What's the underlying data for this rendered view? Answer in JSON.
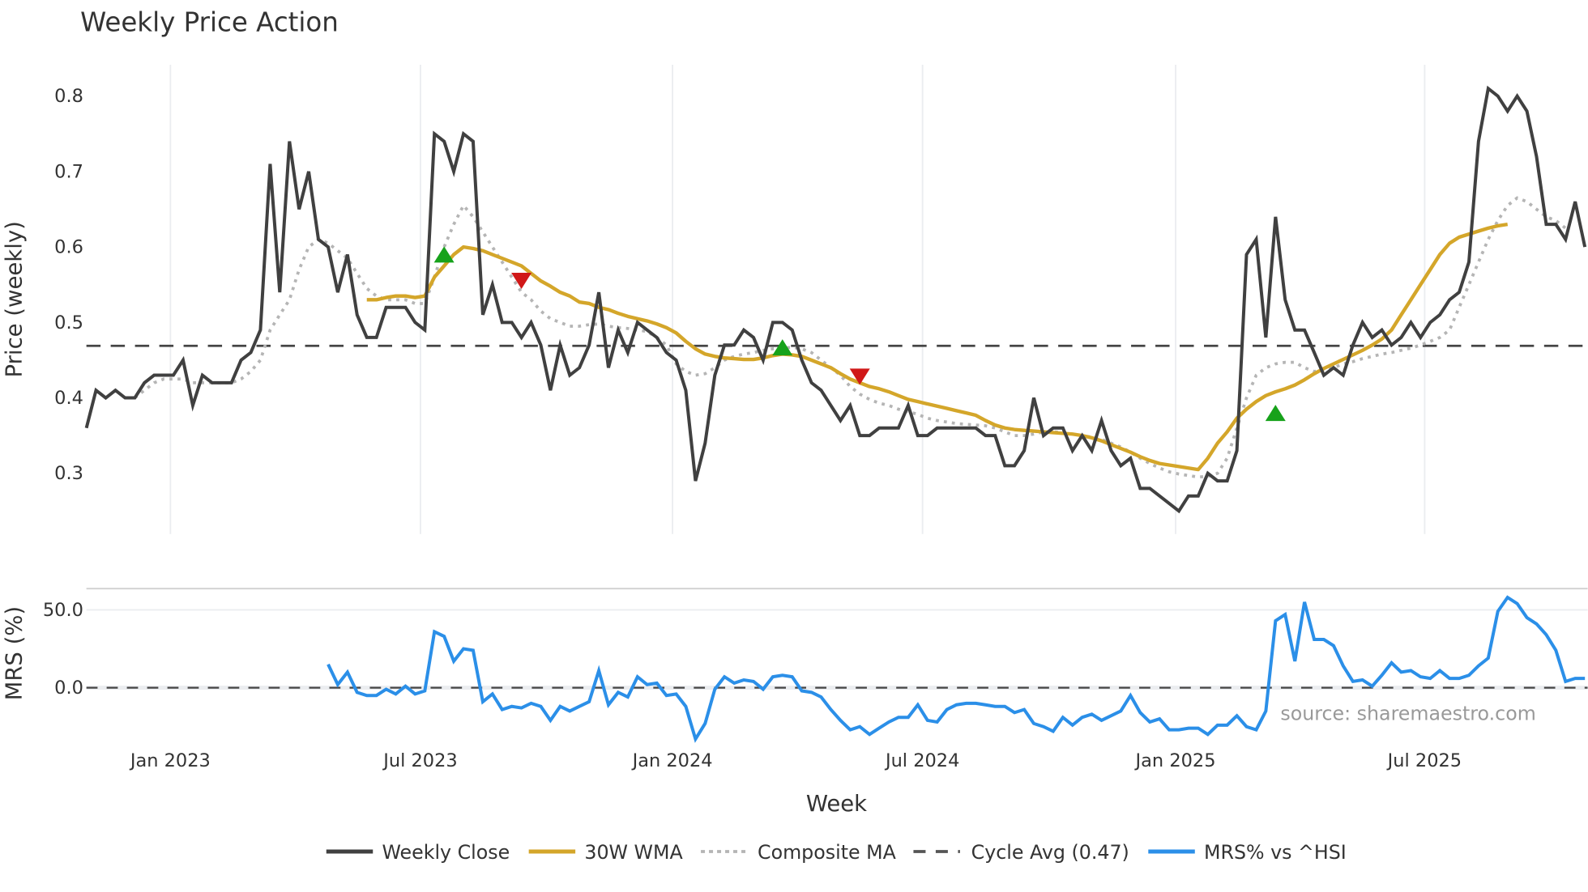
{
  "chart_data": {
    "type": "line",
    "title": "Weekly Price Action",
    "xlabel": "Week",
    "panels": [
      {
        "name": "price",
        "ylabel": "Price (weekly)",
        "ylim": [
          0.22,
          0.84
        ],
        "yticks": [
          "0.3",
          "0.4",
          "0.5",
          "0.6",
          "0.7",
          "0.8"
        ],
        "grid": true
      },
      {
        "name": "mrs",
        "ylabel": "MRS (%)",
        "ylim": [
          -35,
          62
        ],
        "yticks": [
          "0.0",
          "50.0"
        ],
        "grid": true
      }
    ],
    "x_ticks": [
      "Jan 2023",
      "Jul 2023",
      "Jan 2024",
      "Jul 2024",
      "Jan 2025",
      "Jul 2025"
    ],
    "x_range": [
      "2022-10",
      "2025-10"
    ],
    "cycle_avg": 0.47,
    "series": [
      {
        "name": "Weekly Close",
        "color": "#404040",
        "values": [
          0.36,
          0.41,
          0.4,
          0.41,
          0.4,
          0.4,
          0.42,
          0.43,
          0.43,
          0.43,
          0.45,
          0.39,
          0.43,
          0.42,
          0.42,
          0.42,
          0.45,
          0.46,
          0.49,
          0.71,
          0.54,
          0.74,
          0.65,
          0.7,
          0.61,
          0.6,
          0.54,
          0.59,
          0.51,
          0.48,
          0.48,
          0.52,
          0.52,
          0.52,
          0.5,
          0.49,
          0.75,
          0.74,
          0.7,
          0.75,
          0.74,
          0.51,
          0.55,
          0.5,
          0.5,
          0.48,
          0.5,
          0.47,
          0.41,
          0.47,
          0.43,
          0.44,
          0.47,
          0.54,
          0.44,
          0.49,
          0.46,
          0.5,
          0.49,
          0.48,
          0.46,
          0.45,
          0.41,
          0.29,
          0.34,
          0.43,
          0.47,
          0.47,
          0.49,
          0.48,
          0.45,
          0.5,
          0.5,
          0.49,
          0.45,
          0.42,
          0.41,
          0.39,
          0.37,
          0.39,
          0.35,
          0.35,
          0.36,
          0.36,
          0.36,
          0.39,
          0.35,
          0.35,
          0.36,
          0.36,
          0.36,
          0.36,
          0.36,
          0.35,
          0.35,
          0.31,
          0.31,
          0.33,
          0.4,
          0.35,
          0.36,
          0.36,
          0.33,
          0.35,
          0.33,
          0.37,
          0.33,
          0.31,
          0.32,
          0.28,
          0.28,
          0.27,
          0.26,
          0.25,
          0.27,
          0.27,
          0.3,
          0.29,
          0.29,
          0.33,
          0.59,
          0.61,
          0.48,
          0.64,
          0.53,
          0.49,
          0.49,
          0.46,
          0.43,
          0.44,
          0.43,
          0.47,
          0.5,
          0.48,
          0.49,
          0.47,
          0.48,
          0.5,
          0.48,
          0.5,
          0.51,
          0.53,
          0.54,
          0.58,
          0.74,
          0.81,
          0.8,
          0.78,
          0.8,
          0.78,
          0.72,
          0.63,
          0.63,
          0.61,
          0.66,
          0.6
        ]
      },
      {
        "name": "30W WMA",
        "color": "#D4A62A",
        "start_index": 29,
        "values": [
          0.53,
          0.53,
          0.533,
          0.535,
          0.535,
          0.533,
          0.535,
          0.56,
          0.575,
          0.59,
          0.6,
          0.598,
          0.595,
          0.59,
          0.585,
          0.58,
          0.575,
          0.565,
          0.555,
          0.548,
          0.54,
          0.535,
          0.527,
          0.525,
          0.52,
          0.517,
          0.512,
          0.508,
          0.505,
          0.502,
          0.498,
          0.493,
          0.486,
          0.475,
          0.465,
          0.458,
          0.455,
          0.453,
          0.452,
          0.451,
          0.451,
          0.453,
          0.456,
          0.458,
          0.457,
          0.455,
          0.45,
          0.445,
          0.44,
          0.432,
          0.425,
          0.42,
          0.415,
          0.412,
          0.408,
          0.403,
          0.398,
          0.395,
          0.392,
          0.389,
          0.386,
          0.383,
          0.38,
          0.377,
          0.37,
          0.364,
          0.36,
          0.358,
          0.357,
          0.356,
          0.355,
          0.354,
          0.353,
          0.352,
          0.35,
          0.347,
          0.343,
          0.338,
          0.333,
          0.328,
          0.322,
          0.317,
          0.313,
          0.311,
          0.309,
          0.307,
          0.305,
          0.32,
          0.34,
          0.355,
          0.373,
          0.385,
          0.395,
          0.403,
          0.408,
          0.412,
          0.417,
          0.424,
          0.432,
          0.439,
          0.445,
          0.451,
          0.457,
          0.463,
          0.47,
          0.478,
          0.49,
          0.51,
          0.53,
          0.55,
          0.57,
          0.59,
          0.605,
          0.613,
          0.617,
          0.621,
          0.625,
          0.628,
          0.63
        ]
      },
      {
        "name": "Composite MA",
        "color": "#B5B5B5",
        "values": [
          null,
          null,
          null,
          null,
          null,
          0.4,
          0.41,
          0.42,
          0.425,
          0.425,
          0.425,
          0.42,
          0.42,
          0.42,
          0.42,
          0.42,
          0.425,
          0.435,
          0.45,
          0.49,
          0.51,
          0.53,
          0.57,
          0.6,
          0.61,
          0.605,
          0.595,
          0.585,
          0.565,
          0.545,
          0.535,
          0.53,
          0.53,
          0.53,
          0.525,
          0.525,
          0.56,
          0.6,
          0.63,
          0.655,
          0.64,
          0.62,
          0.6,
          0.58,
          0.56,
          0.54,
          0.53,
          0.515,
          0.505,
          0.5,
          0.495,
          0.495,
          0.497,
          0.498,
          0.495,
          0.493,
          0.492,
          0.49,
          0.488,
          0.48,
          0.47,
          0.445,
          0.435,
          0.43,
          0.432,
          0.44,
          0.45,
          0.455,
          0.458,
          0.46,
          0.463,
          0.465,
          0.466,
          0.467,
          0.465,
          0.46,
          0.45,
          0.44,
          0.43,
          0.415,
          0.405,
          0.398,
          0.393,
          0.39,
          0.385,
          0.382,
          0.378,
          0.373,
          0.37,
          0.368,
          0.366,
          0.365,
          0.364,
          0.363,
          0.36,
          0.355,
          0.35,
          0.35,
          0.352,
          0.355,
          0.355,
          0.354,
          0.352,
          0.35,
          0.348,
          0.345,
          0.34,
          0.335,
          0.328,
          0.32,
          0.313,
          0.307,
          0.302,
          0.299,
          0.297,
          0.295,
          0.296,
          0.3,
          0.32,
          0.36,
          0.4,
          0.43,
          0.44,
          0.445,
          0.447,
          0.447,
          0.44,
          0.435,
          0.437,
          0.44,
          0.445,
          0.448,
          0.452,
          0.455,
          0.458,
          0.46,
          0.463,
          0.466,
          0.47,
          0.475,
          0.48,
          0.49,
          0.52,
          0.55,
          0.58,
          0.61,
          0.635,
          0.655,
          0.665,
          0.66,
          0.65,
          0.64,
          0.635,
          0.625
        ]
      },
      {
        "name": "Cycle Avg (0.47)",
        "color": "#444444",
        "style": "dashed",
        "value": 0.47
      },
      {
        "name": "MRS% vs ^HSI",
        "color": "#2B8FE8",
        "panel": "mrs",
        "start_index": 25,
        "values": [
          15,
          2,
          10,
          -3,
          -5,
          -5,
          -1,
          -4,
          1,
          -4,
          -2,
          36,
          33,
          17,
          25,
          24,
          -9,
          -4,
          -14,
          -12,
          -13,
          -10,
          -12,
          -21,
          -12,
          -15,
          -12,
          -9,
          11,
          -11,
          -3,
          -6,
          7,
          2,
          3,
          -5,
          -4,
          -12,
          -33,
          -23,
          -1,
          7,
          3,
          5,
          4,
          -1,
          7,
          8,
          7,
          -2,
          -3,
          -6,
          -14,
          -21,
          -27,
          -25,
          -30,
          -26,
          -22,
          -19,
          -19,
          -11,
          -21,
          -22,
          -14,
          -11,
          -10,
          -10,
          -11,
          -12,
          -12,
          -16,
          -14,
          -23,
          -25,
          -28,
          -19,
          -24,
          -19,
          -17,
          -21,
          -18,
          -15,
          -5,
          -16,
          -22,
          -20,
          -27,
          -27,
          -26,
          -26,
          -30,
          -24,
          -24,
          -18,
          -25,
          -27,
          -15,
          43,
          47,
          17,
          55,
          31,
          31,
          27,
          14,
          4,
          5,
          1,
          8,
          16,
          10,
          11,
          7,
          6,
          11,
          6,
          6,
          8,
          14,
          19,
          49,
          58,
          54,
          45,
          41,
          34,
          24,
          4,
          6,
          6,
          11,
          0
        ]
      }
    ],
    "markers": [
      {
        "type": "buy",
        "shape": "triangle-up",
        "color": "#17A21B",
        "index": 37,
        "y": 0.59
      },
      {
        "type": "sell",
        "shape": "triangle-down",
        "color": "#D01818",
        "index": 45,
        "y": 0.555
      },
      {
        "type": "buy",
        "shape": "triangle-up",
        "color": "#17A21B",
        "index": 72,
        "y": 0.467
      },
      {
        "type": "sell",
        "shape": "triangle-down",
        "color": "#D01818",
        "index": 80,
        "y": 0.428
      },
      {
        "type": "buy",
        "shape": "triangle-up",
        "color": "#17A21B",
        "index": 123,
        "y": 0.38
      }
    ],
    "legend": {
      "position": "bottom",
      "entries": [
        "Weekly Close",
        "30W WMA",
        "Composite MA",
        "Cycle Avg (0.47)",
        "MRS% vs ^HSI"
      ]
    },
    "annotations": [
      "source: sharemaestro.com"
    ]
  },
  "labels": {
    "title": "Weekly Price Action",
    "y_price": "Price (weekly)",
    "y_mrs": "MRS (%)",
    "x_axis": "Week",
    "source": "source: sharemaestro.com",
    "legend_weekly_close": "Weekly Close",
    "legend_wma": "30W WMA",
    "legend_composite": "Composite MA",
    "legend_cycle": "Cycle Avg (0.47)",
    "legend_mrs": "MRS% vs ^HSI"
  }
}
